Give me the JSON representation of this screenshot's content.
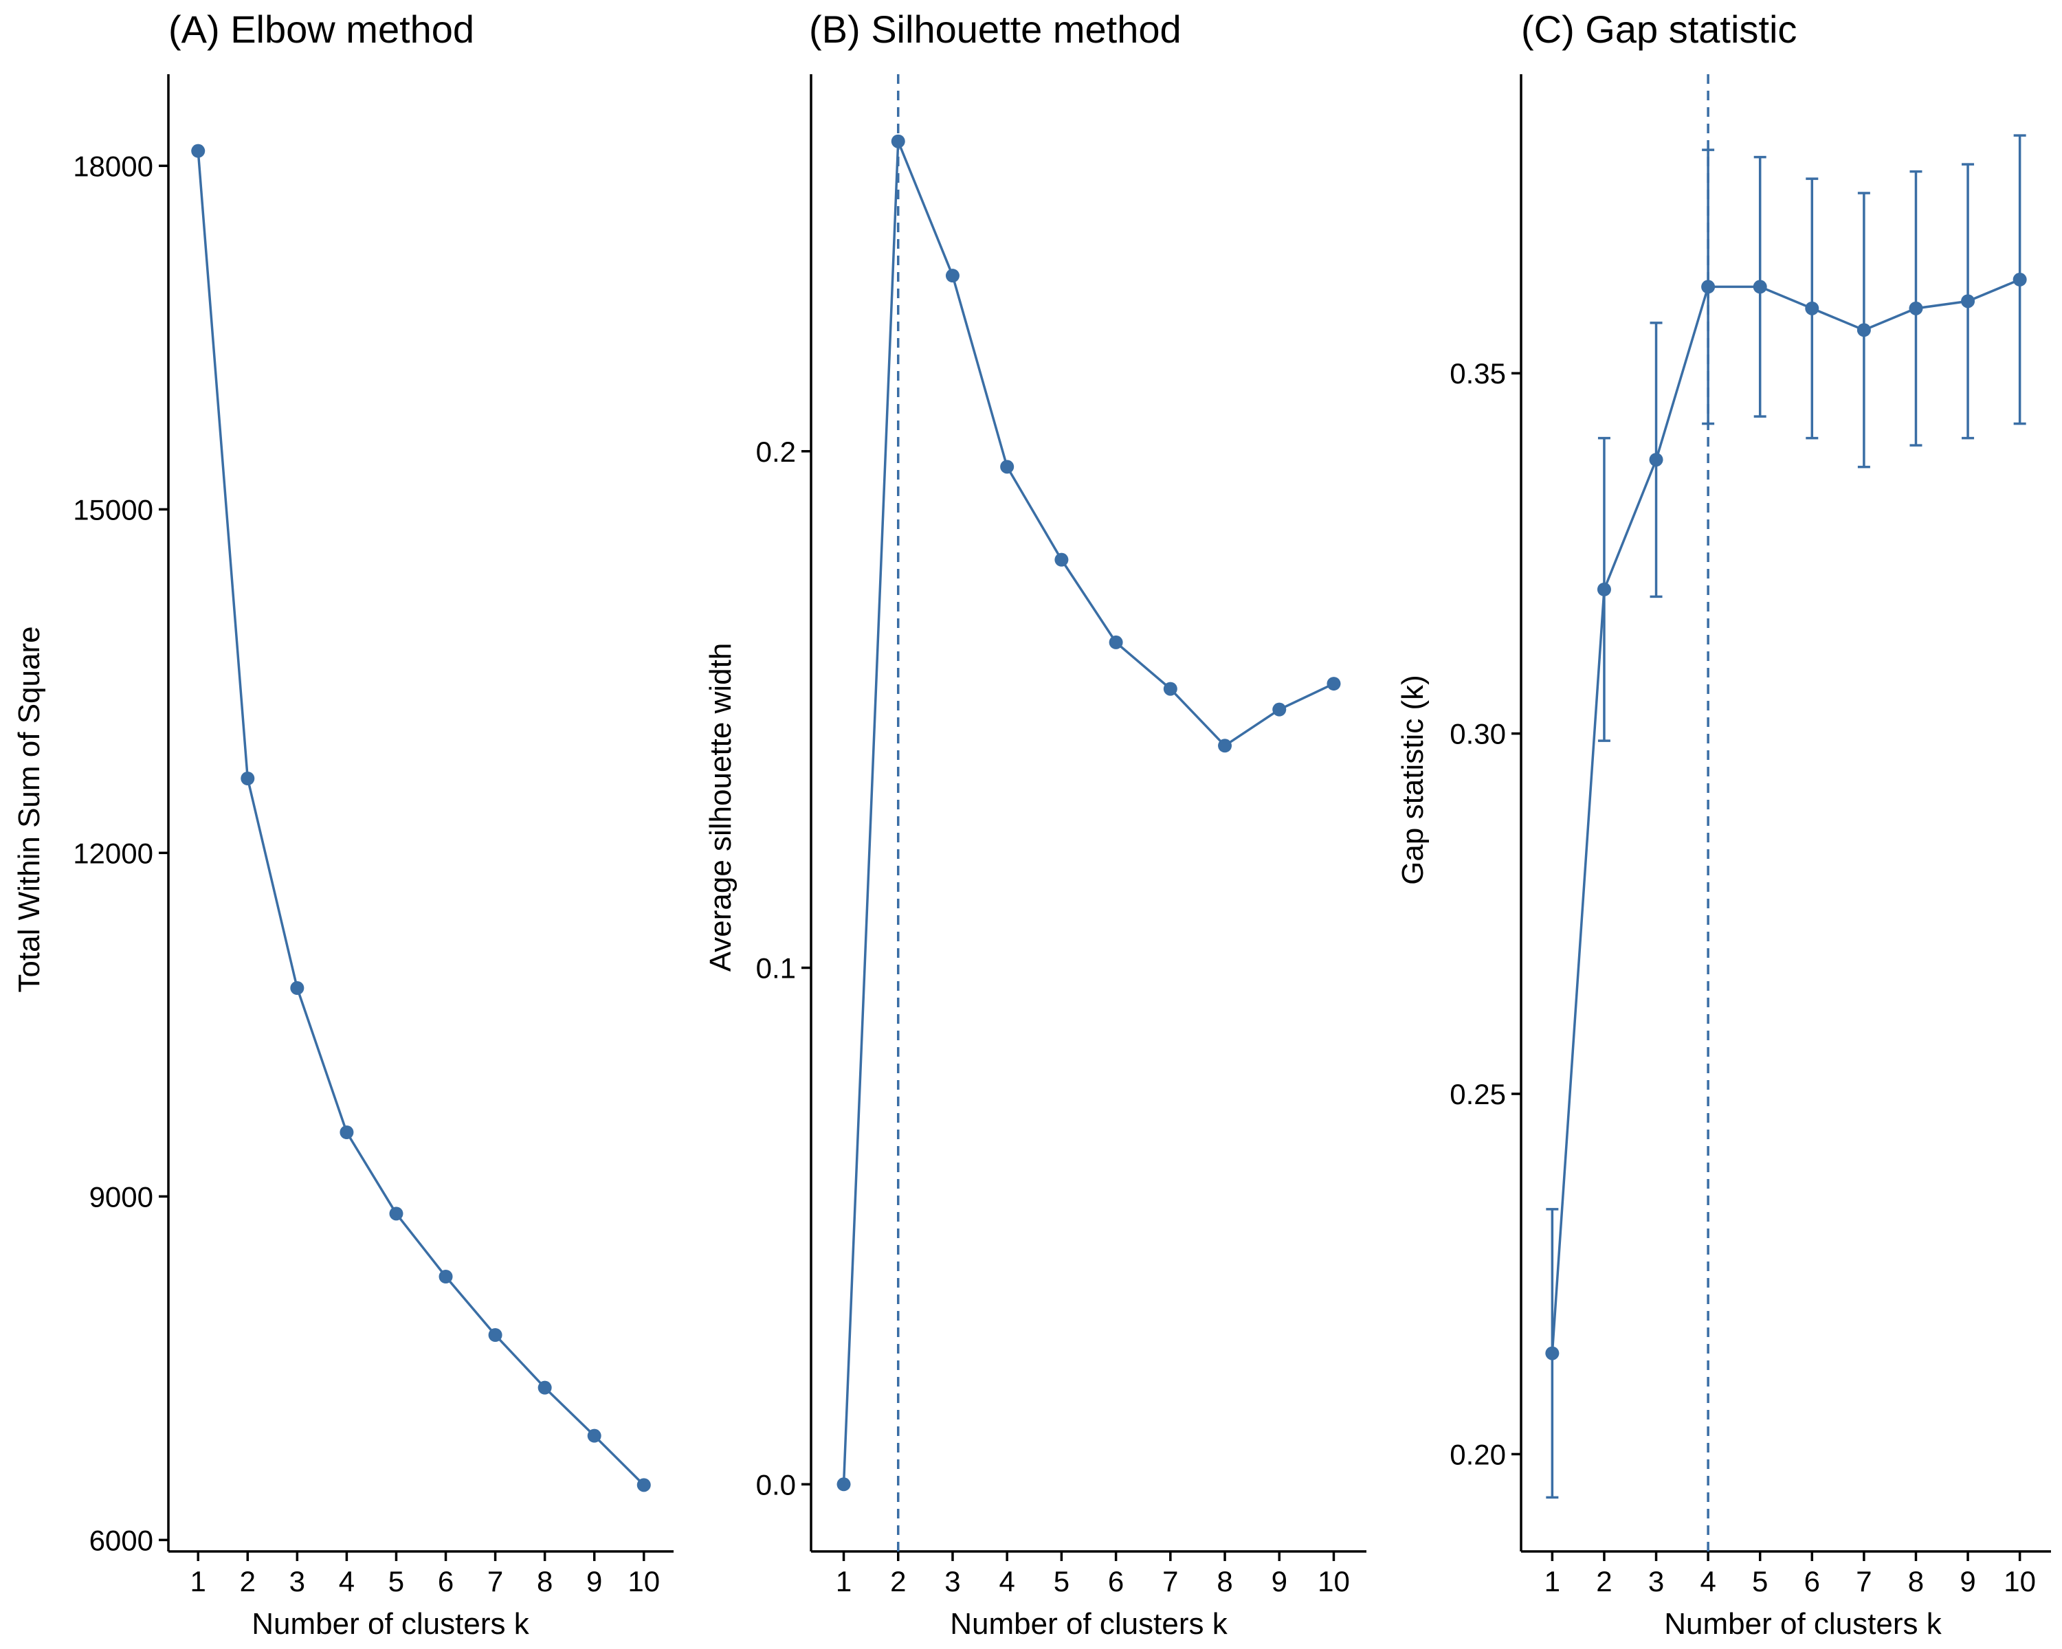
{
  "colors": {
    "series": "#3a6ea5",
    "axis": "#000000",
    "background": "#ffffff"
  },
  "chart_data": [
    {
      "type": "line",
      "title": "(A) Elbow method",
      "xlabel": "Number of clusters k",
      "ylabel": "Total Within Sum of Square",
      "x": [
        1,
        2,
        3,
        4,
        5,
        6,
        7,
        8,
        9,
        10
      ],
      "values": [
        18130,
        12650,
        10820,
        9560,
        8850,
        8300,
        7790,
        7330,
        6910,
        6480
      ],
      "xlim": [
        0.4,
        10.6
      ],
      "ylim": [
        5900,
        18800
      ],
      "xticks": [
        "1",
        "2",
        "3",
        "4",
        "5",
        "6",
        "7",
        "8",
        "9",
        "10"
      ],
      "yticks": [
        "6000",
        "9000",
        "12000",
        "15000",
        "18000"
      ],
      "grid": false
    },
    {
      "type": "line",
      "title": "(B) Silhouette method",
      "xlabel": "Number of clusters k",
      "ylabel": "Average silhouette width",
      "x": [
        1,
        2,
        3,
        4,
        5,
        6,
        7,
        8,
        9,
        10
      ],
      "values": [
        0.0,
        0.26,
        0.234,
        0.197,
        0.179,
        0.163,
        0.154,
        0.143,
        0.15,
        0.155
      ],
      "xlim": [
        0.4,
        10.6
      ],
      "ylim": [
        -0.013,
        0.273
      ],
      "xticks": [
        "1",
        "2",
        "3",
        "4",
        "5",
        "6",
        "7",
        "8",
        "9",
        "10"
      ],
      "yticks": [
        "0.0",
        "0.1",
        "0.2"
      ],
      "vline": 2,
      "grid": false
    },
    {
      "type": "line",
      "title": "(C) Gap statistic",
      "xlabel": "Number of clusters k",
      "ylabel": "Gap statistic (k)",
      "x": [
        1,
        2,
        3,
        4,
        5,
        6,
        7,
        8,
        9,
        10
      ],
      "values": [
        0.214,
        0.32,
        0.338,
        0.362,
        0.362,
        0.359,
        0.356,
        0.359,
        0.36,
        0.363
      ],
      "errors": [
        0.02,
        0.021,
        0.019,
        0.019,
        0.018,
        0.018,
        0.019,
        0.019,
        0.019,
        0.02
      ],
      "xlim": [
        0.4,
        10.6
      ],
      "ylim": [
        0.1865,
        0.3915
      ],
      "xticks": [
        "1",
        "2",
        "3",
        "4",
        "5",
        "6",
        "7",
        "8",
        "9",
        "10"
      ],
      "yticks": [
        "0.20",
        "0.25",
        "0.30",
        "0.35"
      ],
      "vline": 4,
      "grid": false
    }
  ]
}
